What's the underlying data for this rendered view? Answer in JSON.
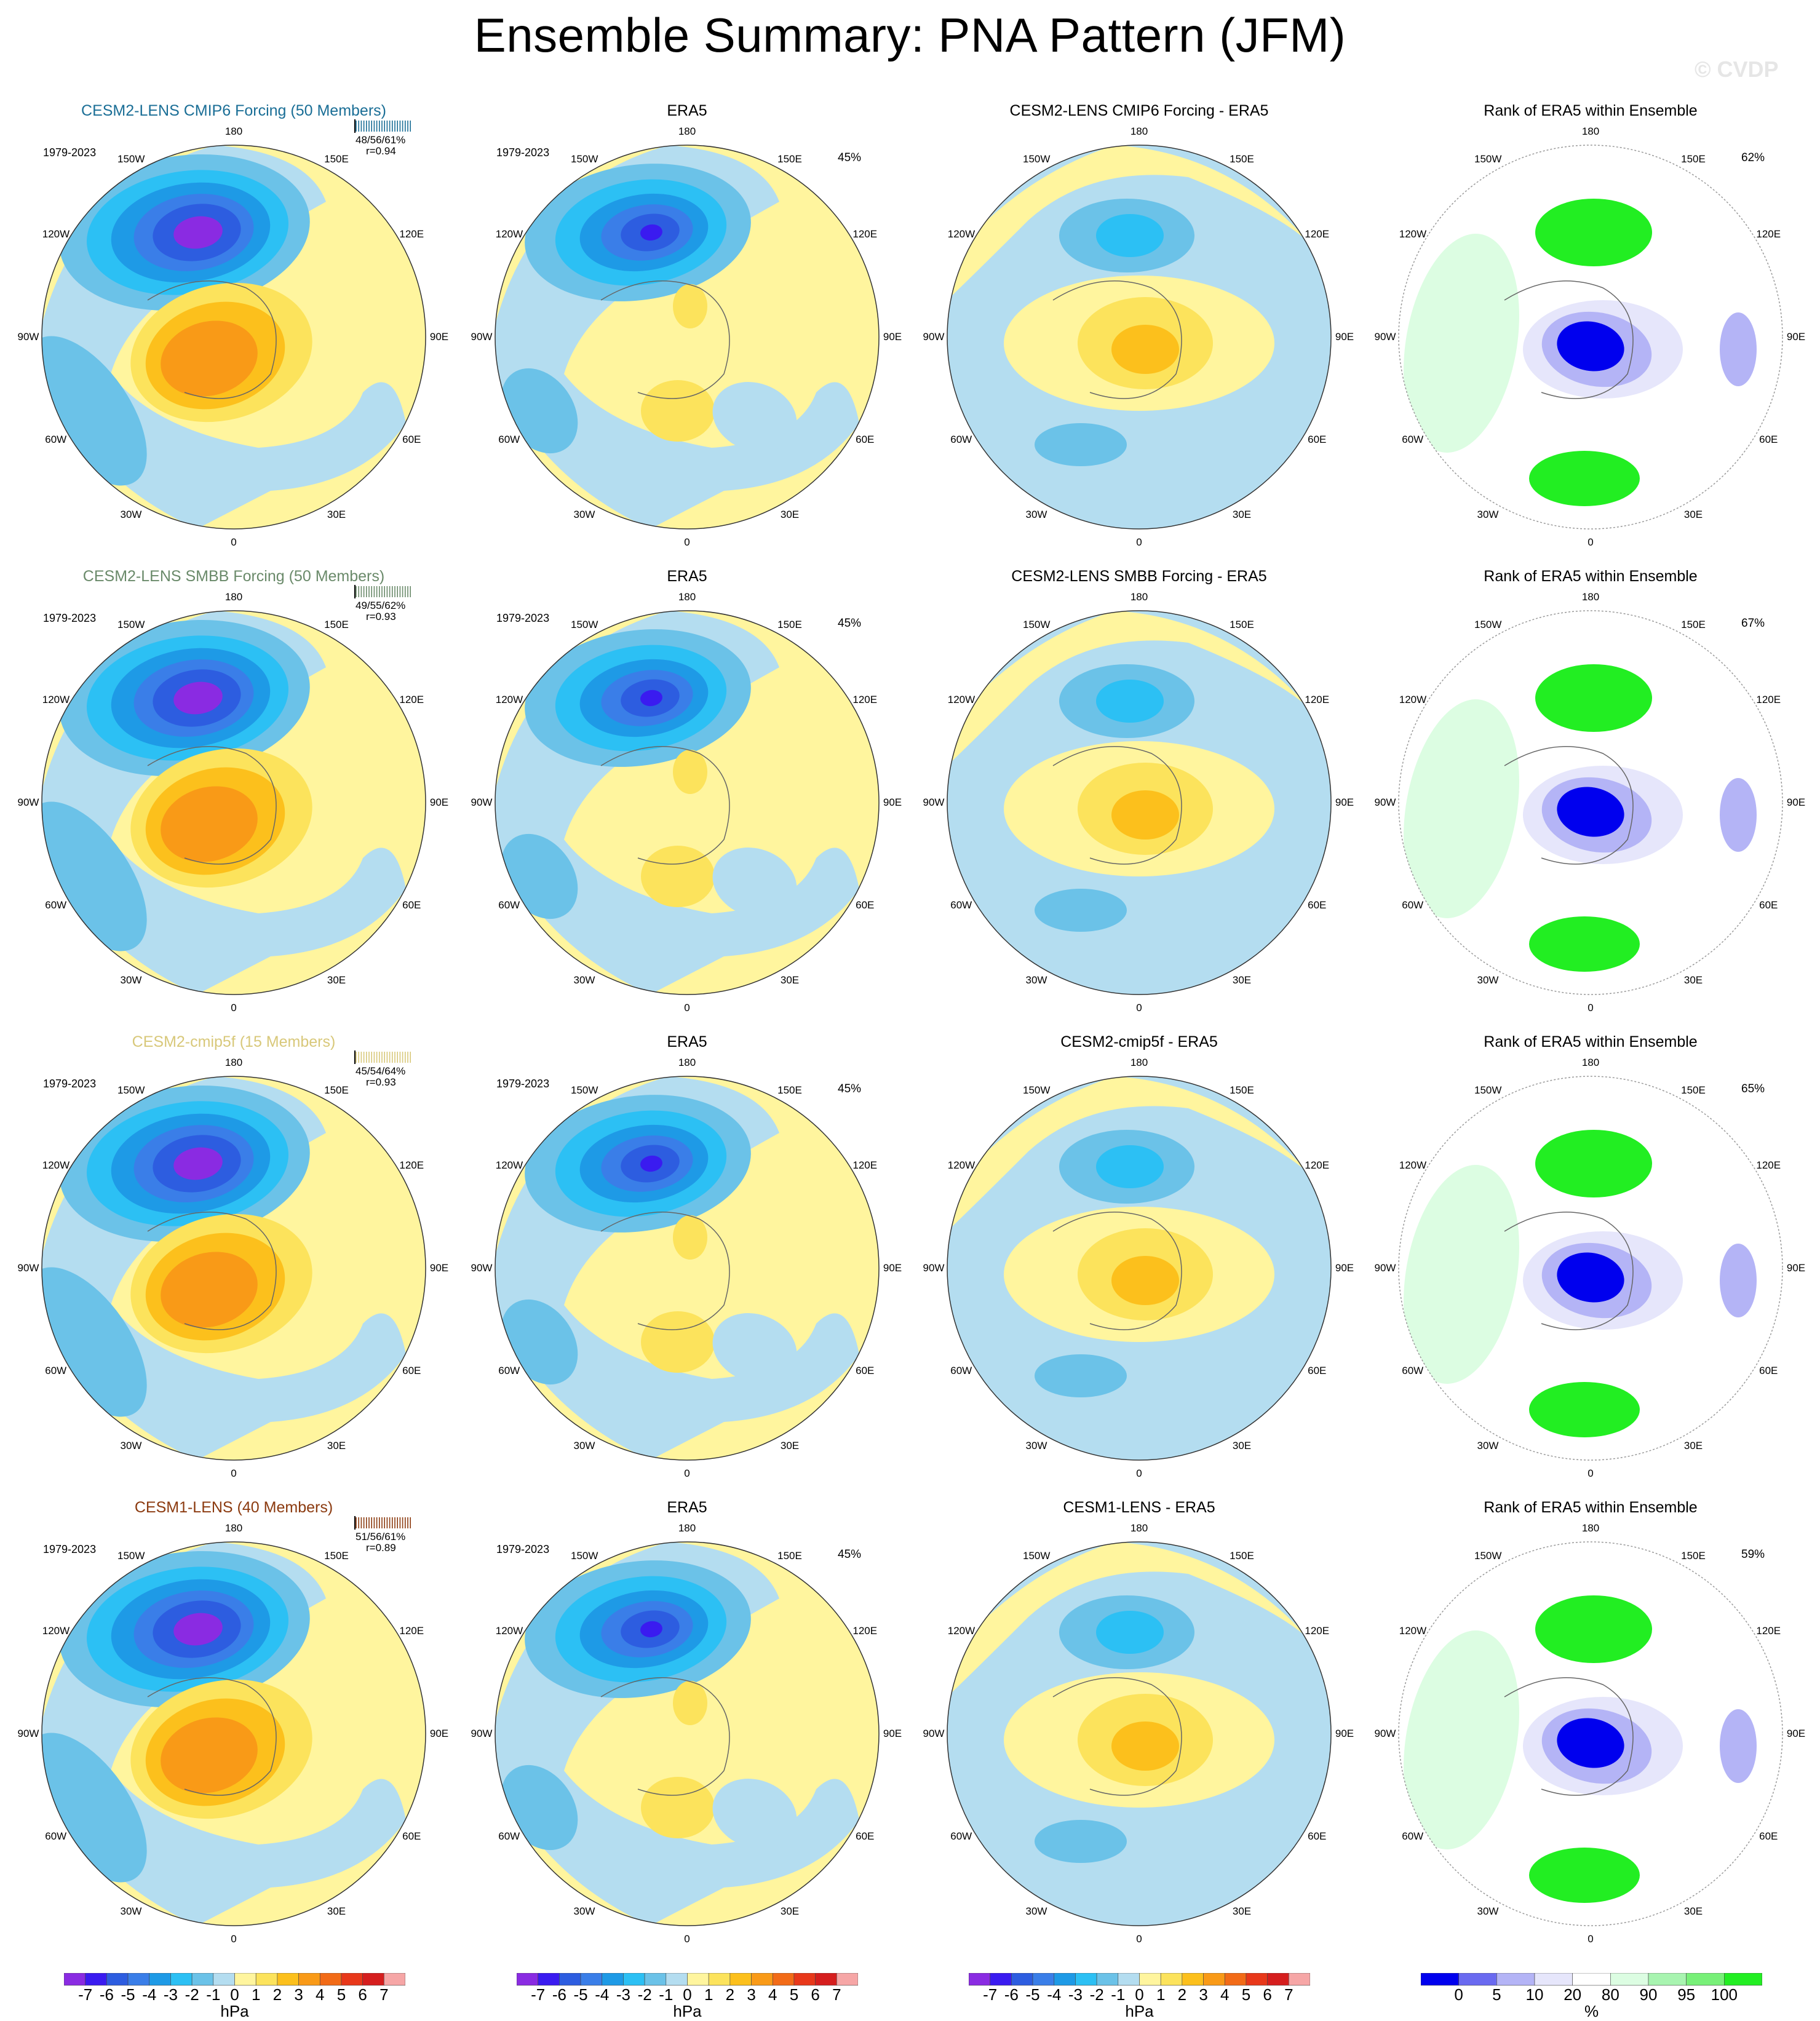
{
  "title": "Ensemble Summary: PNA Pattern (JFM)",
  "watermark": "© CVDP",
  "period_label": "1979-2023",
  "obs_name": "ERA5",
  "rank_title": "Rank of ERA5 within Ensemble",
  "lon_labels": [
    "180",
    "150E",
    "120E",
    "90E",
    "60E",
    "30E",
    "0",
    "30W",
    "60W",
    "90W",
    "120W",
    "150W"
  ],
  "rows": [
    {
      "ens_title": "CESM2-LENS CMIP6 Forcing (50 Members)",
      "ens_color": "#1a6e96",
      "stats_pct": "48/56/61%",
      "stats_r": "r=0.94",
      "obs_pct": "45%",
      "diff_title": "CESM2-LENS CMIP6 Forcing - ERA5",
      "rank_pct": "62%"
    },
    {
      "ens_title": "CESM2-LENS SMBB Forcing (50 Members)",
      "ens_color": "#6a8a6a",
      "stats_pct": "49/55/62%",
      "stats_r": "r=0.93",
      "obs_pct": "45%",
      "diff_title": "CESM2-LENS SMBB Forcing - ERA5",
      "rank_pct": "67%"
    },
    {
      "ens_title": "CESM2-cmip5f (15 Members)",
      "ens_color": "#d8c87a",
      "stats_pct": "45/54/64%",
      "stats_r": "r=0.93",
      "obs_pct": "45%",
      "diff_title": "CESM2-cmip5f - ERA5",
      "rank_pct": "65%"
    },
    {
      "ens_title": "CESM1-LENS (40 Members)",
      "ens_color": "#8b3a0f",
      "stats_pct": "51/56/61%",
      "stats_r": "r=0.89",
      "obs_pct": "45%",
      "diff_title": "CESM1-LENS - ERA5",
      "rank_pct": "59%"
    }
  ],
  "colorbars": {
    "hpa": {
      "unit": "hPa",
      "ticks": [
        "-7",
        "-6",
        "-5",
        "-4",
        "-3",
        "-2",
        "-1",
        "0",
        "1",
        "2",
        "3",
        "4",
        "5",
        "6",
        "7"
      ],
      "colors": [
        "#8a2be2",
        "#3a1bf0",
        "#2d5de0",
        "#3a7ee8",
        "#1e9ae6",
        "#2cc0f4",
        "#6bc2e8",
        "#b4ddf0",
        "#fff59e",
        "#fce35c",
        "#fcc01c",
        "#f99a17",
        "#f26b17",
        "#e8381a",
        "#d51e1e",
        "#f6a6a6"
      ]
    },
    "pct": {
      "unit": "%",
      "ticks": [
        "0",
        "5",
        "10",
        "20",
        "80",
        "90",
        "95",
        "100"
      ],
      "colors": [
        "#0000ee",
        "#6a6af0",
        "#b4b4f6",
        "#e6e6fb",
        "#ffffff",
        "#dcfde2",
        "#a8f4b0",
        "#78f078",
        "#22ee22"
      ]
    }
  }
}
